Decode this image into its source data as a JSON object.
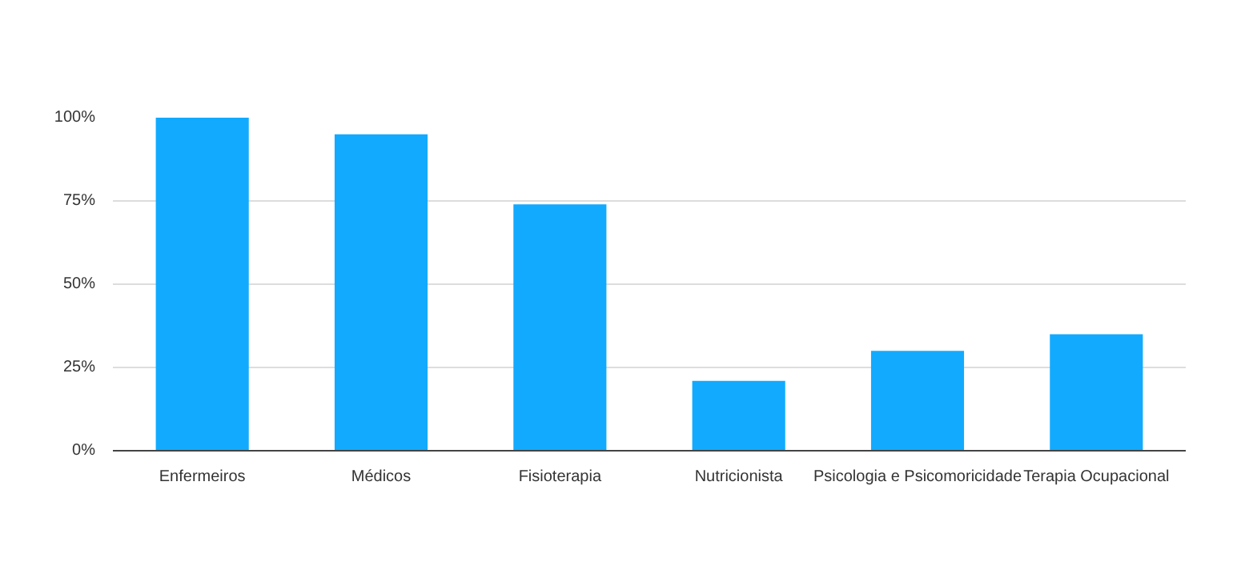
{
  "chart_data": {
    "type": "bar",
    "categories": [
      "Enfermeiros",
      "Médicos",
      "Fisioterapia",
      "Nutricionista",
      "Psicologia e Psicomoricidade",
      "Terapia Ocupacional"
    ],
    "values": [
      100,
      95,
      74,
      21,
      30,
      35
    ],
    "color": "#12aaff",
    "ylim": [
      0,
      100
    ],
    "yticks": [
      {
        "value": 0,
        "label": "0%"
      },
      {
        "value": 25,
        "label": "25%"
      },
      {
        "value": 50,
        "label": "50%"
      },
      {
        "value": 75,
        "label": "75%"
      },
      {
        "value": 100,
        "label": "100%"
      }
    ],
    "grid": "y"
  }
}
